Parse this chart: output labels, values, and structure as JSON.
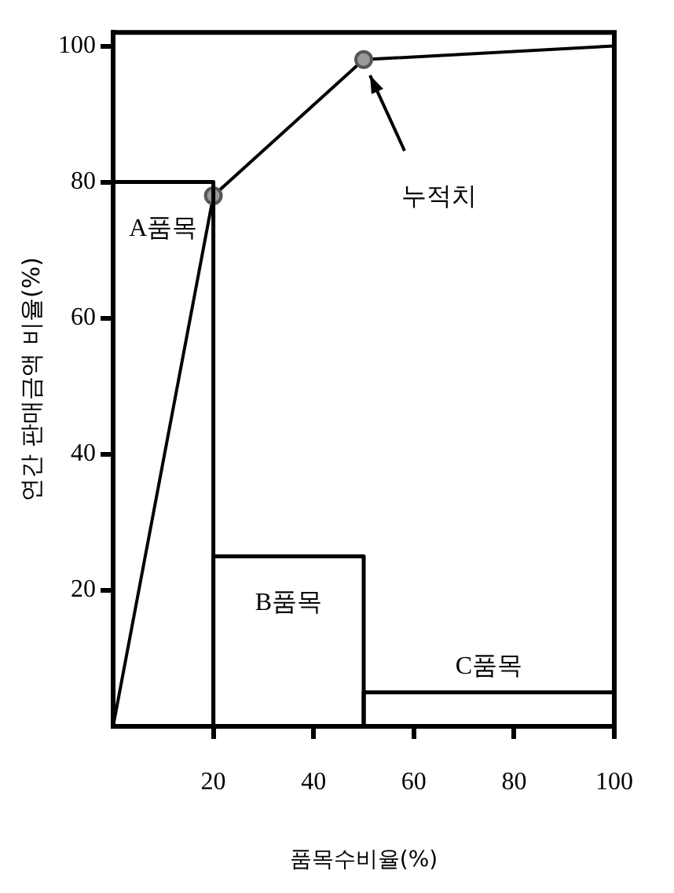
{
  "chart_data": {
    "type": "histogram",
    "xlabel": "품목수비율(%)",
    "ylabel": "연간 판매금액 비율(%)",
    "bins": [
      0,
      20,
      50,
      100
    ],
    "values": [
      80,
      25,
      5
    ],
    "color": "#000000",
    "series": [
      {
        "type": "line",
        "color": "#000000",
        "x": [
          0,
          20,
          50,
          100
        ],
        "values": [
          0,
          78,
          98,
          100
        ]
      }
    ],
    "marker": "circle",
    "grid": false,
    "xlim": [
      0,
      100
    ],
    "xticks": [
      20,
      40,
      60,
      80,
      100
    ],
    "ylim": [
      0,
      102
    ],
    "yticks": [
      20,
      40,
      60,
      80,
      100
    ],
    "annotations": [
      "A품목",
      "B품목",
      "C품목",
      "누적치"
    ]
  }
}
